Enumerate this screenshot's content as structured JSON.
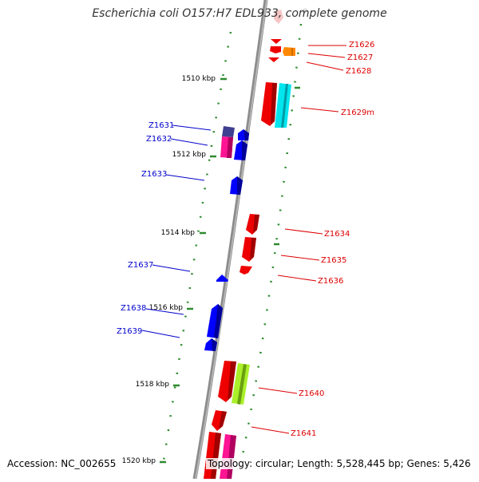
{
  "title": "Escherichia coli O157:H7 EDL933, complete genome",
  "accession": "Accession: NC_002655",
  "topology": "Topology: circular; Length: 5,528,445 bp; Genes: 5,426",
  "colors": {
    "backbone": "#8c8c8c",
    "tick": "#2e8b2e",
    "label_forward": "#0000cc",
    "label_reverse": "#dd0000"
  },
  "scale_ticks": [
    "1510 kbp",
    "1512 kbp",
    "1514 kbp",
    "1516 kbp",
    "1518 kbp",
    "1520 kbp"
  ],
  "genes_forward": [
    "Z1631",
    "Z1632",
    "Z1633",
    "Z1637",
    "Z1638",
    "Z1639"
  ],
  "genes_reverse": [
    "Z1626",
    "Z1627",
    "Z1628",
    "Z1629m",
    "Z1634",
    "Z1635",
    "Z1636",
    "Z1640",
    "Z1641"
  ]
}
